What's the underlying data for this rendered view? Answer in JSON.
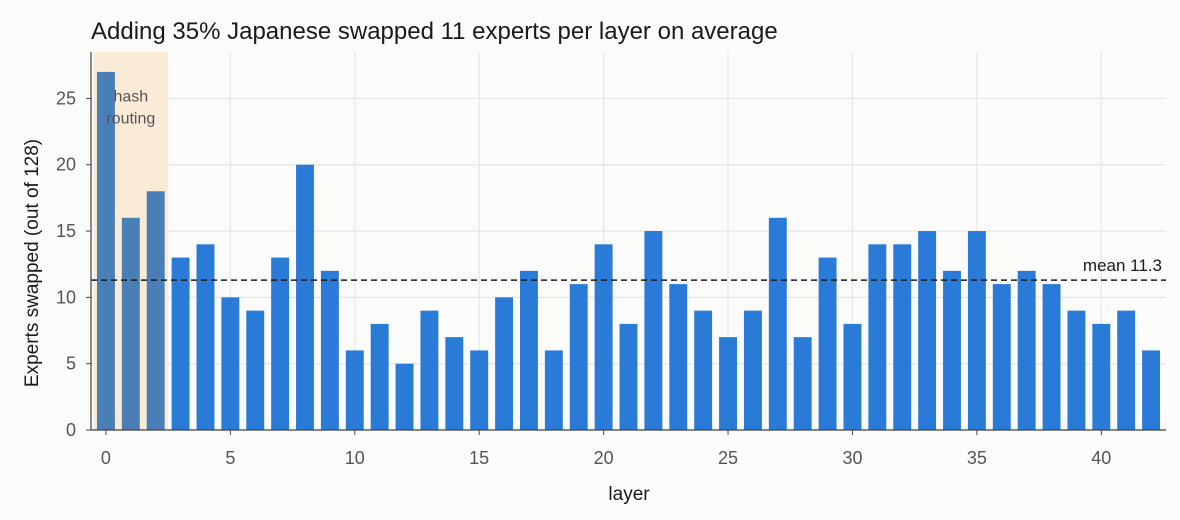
{
  "chart_data": {
    "type": "bar",
    "title": "Adding 35% Japanese swapped 11 experts per layer on average",
    "xlabel": "layer",
    "ylabel": "Experts swapped (out of 128)",
    "x": [
      0,
      1,
      2,
      3,
      4,
      5,
      6,
      7,
      8,
      9,
      10,
      11,
      12,
      13,
      14,
      15,
      16,
      17,
      18,
      19,
      20,
      21,
      22,
      23,
      24,
      25,
      26,
      27,
      28,
      29,
      30,
      31,
      32,
      33,
      34,
      35,
      36,
      37,
      38,
      39,
      40,
      41,
      42
    ],
    "values": [
      27,
      16,
      18,
      13,
      14,
      10,
      9,
      13,
      20,
      12,
      6,
      8,
      5,
      9,
      7,
      6,
      10,
      12,
      6,
      11,
      14,
      8,
      15,
      11,
      9,
      7,
      9,
      16,
      7,
      13,
      8,
      14,
      14,
      15,
      12,
      15,
      11,
      12,
      11,
      9,
      8,
      9,
      6
    ],
    "xlim": [
      -0.6,
      42.6
    ],
    "ylim": [
      0,
      28.5
    ],
    "xticks": [
      0,
      5,
      10,
      15,
      20,
      25,
      30,
      35,
      40
    ],
    "yticks": [
      0,
      5,
      10,
      15,
      20,
      25
    ],
    "grid": true,
    "mean": {
      "value": 11.3,
      "label": "mean 11.3"
    },
    "highlight_region": {
      "x_range": [
        -0.5,
        2.5
      ],
      "label_line1": "hash",
      "label_line2": "routing"
    },
    "colors": {
      "bar": "#2a7ad8",
      "bar_highlighted": "#4a7eb6",
      "highlight_fill": "#f9ebd6",
      "grid": "#e6e6e6",
      "mean_line": "#1a1a1a",
      "axis": "#444444"
    }
  }
}
